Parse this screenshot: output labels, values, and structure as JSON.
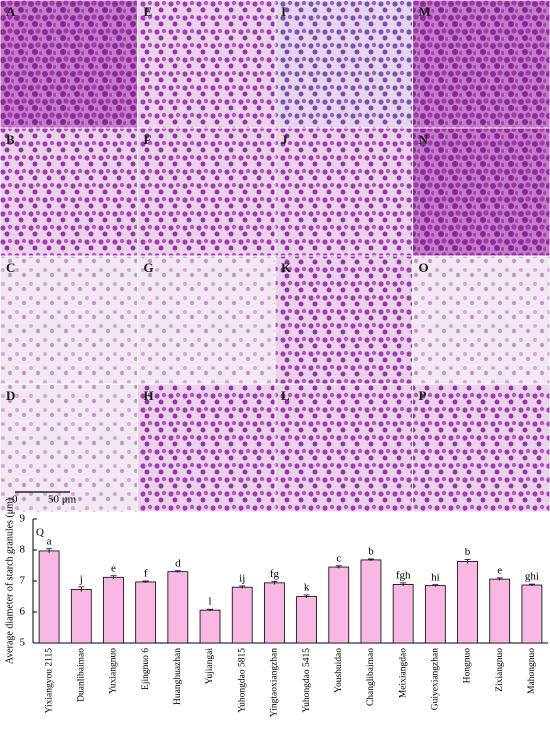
{
  "panels": [
    {
      "label": "A"
    },
    {
      "label": "B"
    },
    {
      "label": "C"
    },
    {
      "label": "D"
    },
    {
      "label": "E"
    },
    {
      "label": "F"
    },
    {
      "label": "G"
    },
    {
      "label": "H"
    },
    {
      "label": "I"
    },
    {
      "label": "J"
    },
    {
      "label": "K"
    },
    {
      "label": "L"
    },
    {
      "label": "M"
    },
    {
      "label": "N"
    },
    {
      "label": "O"
    },
    {
      "label": "P"
    }
  ],
  "scale_bar_labels": [
    "0",
    "50 μm"
  ],
  "chart_data": {
    "type": "bar",
    "panel_label": "Q",
    "ylabel": "Average diameter of starch granules (μm)",
    "categories": [
      "Yixiangyou 2115",
      "Duanlibaimao",
      "Yuxiangnuo",
      "Ejingnuo 6",
      "Huanghuazhan",
      "Yujiangai",
      "Yuhongdao 5815",
      "Yingtaoxiangzhan",
      "Yuhongdao 5415",
      "Youshuidao",
      "Changlibaimao",
      "Meixiangdao",
      "Guiyexiangzhan",
      "Hongnuo",
      "Zixiangnuo",
      "Mahongnuo"
    ],
    "values": [
      7.97,
      6.73,
      7.12,
      6.97,
      7.3,
      6.06,
      6.8,
      6.94,
      6.5,
      7.45,
      7.68,
      6.89,
      6.85,
      7.63,
      7.06,
      6.87
    ],
    "errors": [
      0.07,
      0.08,
      0.05,
      0.03,
      0.03,
      0.03,
      0.04,
      0.05,
      0.05,
      0.04,
      0.03,
      0.05,
      0.03,
      0.06,
      0.04,
      0.03
    ],
    "significance_letters": [
      "a",
      "j",
      "e",
      "f",
      "d",
      "l",
      "ij",
      "fg",
      "k",
      "c",
      "b",
      "fgh",
      "hi",
      "b",
      "e",
      "ghi"
    ],
    "color": "#f9b8e3",
    "ylim": [
      5,
      9
    ],
    "yticks": [
      5,
      6,
      7,
      8,
      9
    ]
  }
}
